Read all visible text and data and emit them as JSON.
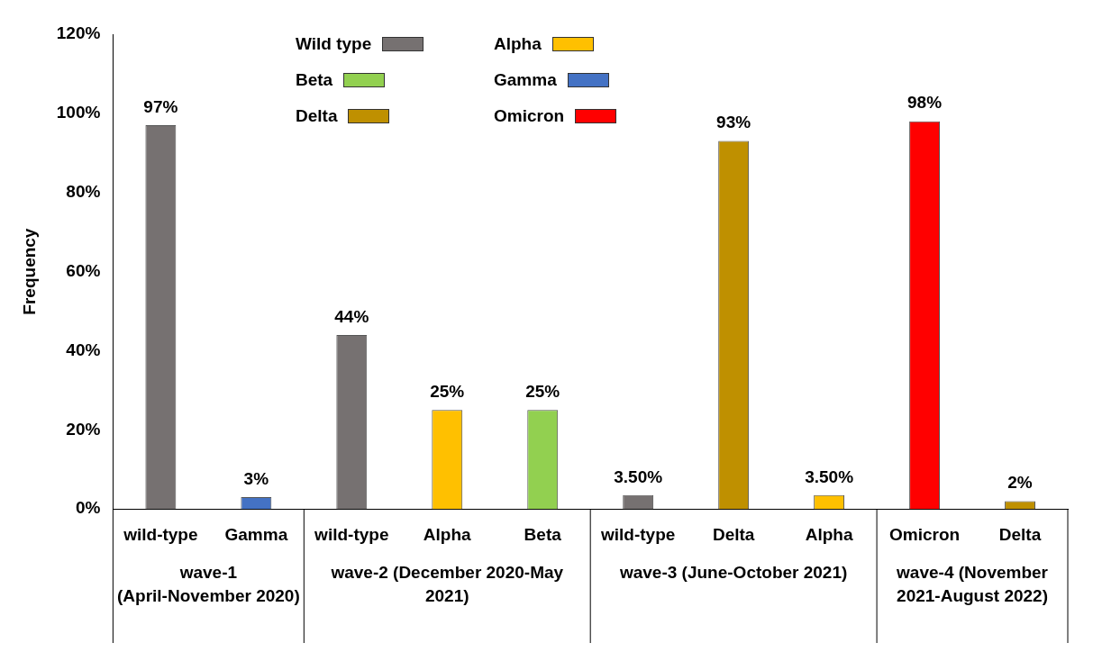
{
  "chart_data": {
    "type": "bar",
    "ylabel": "Frequency",
    "categories": [
      "wild-type",
      "Gamma",
      "wild-type",
      "Alpha",
      "Beta",
      "wild-type",
      "Delta",
      "Alpha",
      "Omicron",
      "Delta"
    ],
    "series": [
      {
        "name": "Wild type",
        "color": "#767171",
        "values": [
          97,
          null,
          44,
          null,
          null,
          3.5,
          null,
          null,
          null,
          null
        ],
        "value_labels": [
          "97%",
          null,
          "44%",
          null,
          null,
          "3.50%",
          null,
          null,
          null,
          null
        ]
      },
      {
        "name": "Alpha",
        "color": "#ffc000",
        "values": [
          null,
          null,
          null,
          25,
          null,
          null,
          null,
          3.5,
          null,
          null
        ],
        "value_labels": [
          null,
          null,
          null,
          "25%",
          null,
          null,
          null,
          "3.50%",
          null,
          null
        ]
      },
      {
        "name": "Beta",
        "color": "#92d050",
        "values": [
          null,
          null,
          null,
          null,
          25,
          null,
          null,
          null,
          null,
          null
        ],
        "value_labels": [
          null,
          null,
          null,
          null,
          "25%",
          null,
          null,
          null,
          null,
          null
        ]
      },
      {
        "name": "Gamma",
        "color": "#4472c4",
        "values": [
          null,
          3,
          null,
          null,
          null,
          null,
          null,
          null,
          null,
          null
        ],
        "value_labels": [
          null,
          "3%",
          null,
          null,
          null,
          null,
          null,
          null,
          null,
          null
        ]
      },
      {
        "name": "Delta",
        "color": "#bf9000",
        "values": [
          null,
          null,
          null,
          null,
          null,
          null,
          93,
          null,
          null,
          2
        ],
        "value_labels": [
          null,
          null,
          null,
          null,
          null,
          null,
          "93%",
          null,
          null,
          "2%"
        ]
      },
      {
        "name": "Omicron",
        "color": "#ff0000",
        "values": [
          null,
          null,
          null,
          null,
          null,
          null,
          null,
          null,
          98,
          null
        ],
        "value_labels": [
          null,
          null,
          null,
          null,
          null,
          null,
          null,
          null,
          "98%",
          null
        ]
      }
    ],
    "ylim": [
      0,
      120
    ],
    "yticks": [
      {
        "value": 0,
        "label": "0%"
      },
      {
        "value": 20,
        "label": "20%"
      },
      {
        "value": 40,
        "label": "40%"
      },
      {
        "value": 60,
        "label": "60%"
      },
      {
        "value": 80,
        "label": "80%"
      },
      {
        "value": 100,
        "label": "100%"
      },
      {
        "value": 120,
        "label": "120%"
      }
    ],
    "grid": false,
    "legend": "top",
    "annotations": [
      "wave-1 (April-November 2020)",
      "wave-2 (December 2020-May 2021)",
      "wave-3 (June-October 2021)",
      "wave-4 (November 2021-August 2022)"
    ]
  }
}
